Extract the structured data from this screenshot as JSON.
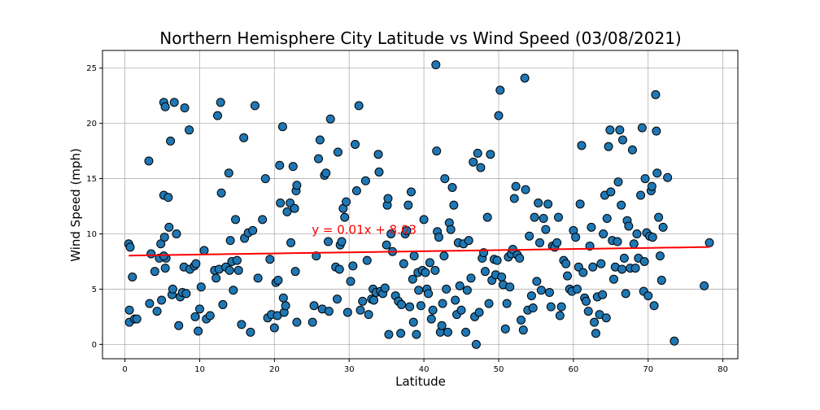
{
  "chart_data": {
    "type": "scatter",
    "title": "Northern Hemisphere City Latitude vs Wind Speed (03/08/2021)",
    "xlabel": "Latitude",
    "ylabel": "Wind Speed (mph)",
    "xlim": [
      -3,
      82
    ],
    "ylim": [
      -1.3,
      26.6
    ],
    "xticks": [
      0,
      10,
      20,
      30,
      40,
      50,
      60,
      70,
      80
    ],
    "yticks": [
      0,
      5,
      10,
      15,
      20,
      25
    ],
    "grid": true,
    "marker_color": "#1f77b4",
    "marker_edge": "#000000",
    "regression": {
      "slope": 0.01,
      "intercept": 8.03,
      "x_range": [
        0.5,
        78.2
      ],
      "color": "#ff0000",
      "equation": "y = 0.01x + 8.03",
      "label_x": 25,
      "label_y": 10
    },
    "points": [
      [
        0.5,
        9.1
      ],
      [
        0.7,
        8.8
      ],
      [
        0.6,
        3.1
      ],
      [
        0.6,
        2.0
      ],
      [
        1.0,
        6.1
      ],
      [
        1.3,
        2.3
      ],
      [
        1.6,
        2.3
      ],
      [
        3.2,
        16.6
      ],
      [
        3.3,
        3.7
      ],
      [
        3.5,
        8.2
      ],
      [
        4.0,
        6.6
      ],
      [
        4.3,
        3.0
      ],
      [
        4.6,
        7.8
      ],
      [
        4.8,
        9.1
      ],
      [
        4.9,
        4.0
      ],
      [
        5.2,
        21.9
      ],
      [
        5.4,
        21.5
      ],
      [
        5.2,
        13.5
      ],
      [
        5.3,
        9.7
      ],
      [
        5.4,
        6.9
      ],
      [
        5.5,
        7.8
      ],
      [
        5.2,
        8.0
      ],
      [
        5.8,
        13.3
      ],
      [
        5.9,
        10.6
      ],
      [
        6.1,
        18.4
      ],
      [
        6.3,
        4.5
      ],
      [
        6.6,
        21.9
      ],
      [
        6.4,
        5.0
      ],
      [
        6.9,
        10.0
      ],
      [
        7.2,
        1.7
      ],
      [
        7.4,
        4.3
      ],
      [
        7.7,
        4.7
      ],
      [
        7.9,
        7.0
      ],
      [
        8.0,
        21.4
      ],
      [
        8.2,
        4.6
      ],
      [
        8.6,
        19.4
      ],
      [
        8.7,
        6.8
      ],
      [
        9.3,
        7.1
      ],
      [
        9.5,
        7.3
      ],
      [
        9.4,
        2.5
      ],
      [
        9.8,
        1.2
      ],
      [
        10.0,
        3.2
      ],
      [
        10.2,
        5.2
      ],
      [
        10.6,
        8.5
      ],
      [
        10.9,
        2.3
      ],
      [
        11.4,
        2.6
      ],
      [
        12.0,
        6.7
      ],
      [
        12.2,
        6.0
      ],
      [
        12.4,
        20.7
      ],
      [
        12.6,
        6.8
      ],
      [
        12.8,
        21.9
      ],
      [
        12.9,
        13.7
      ],
      [
        13.1,
        3.6
      ],
      [
        13.5,
        7.0
      ],
      [
        13.9,
        15.5
      ],
      [
        14.0,
        6.7
      ],
      [
        14.1,
        9.4
      ],
      [
        14.3,
        7.5
      ],
      [
        14.5,
        4.9
      ],
      [
        14.8,
        11.3
      ],
      [
        15.0,
        7.6
      ],
      [
        15.2,
        6.7
      ],
      [
        15.6,
        1.8
      ],
      [
        15.9,
        18.7
      ],
      [
        16.0,
        9.6
      ],
      [
        16.5,
        10.1
      ],
      [
        16.8,
        1.1
      ],
      [
        17.1,
        10.3
      ],
      [
        17.4,
        21.6
      ],
      [
        17.8,
        6.0
      ],
      [
        18.4,
        11.3
      ],
      [
        18.8,
        15.0
      ],
      [
        19.1,
        2.4
      ],
      [
        19.4,
        7.7
      ],
      [
        19.6,
        2.7
      ],
      [
        20.0,
        1.5
      ],
      [
        20.2,
        5.6
      ],
      [
        20.4,
        2.6
      ],
      [
        20.5,
        5.8
      ],
      [
        20.7,
        16.2
      ],
      [
        20.8,
        12.8
      ],
      [
        21.1,
        19.7
      ],
      [
        21.2,
        4.2
      ],
      [
        21.3,
        2.9
      ],
      [
        21.5,
        3.5
      ],
      [
        21.7,
        12.0
      ],
      [
        22.1,
        12.8
      ],
      [
        22.2,
        9.2
      ],
      [
        22.5,
        16.1
      ],
      [
        22.7,
        12.3
      ],
      [
        22.9,
        13.9
      ],
      [
        23.0,
        14.4
      ],
      [
        22.8,
        6.6
      ],
      [
        23.0,
        2.0
      ],
      [
        25.1,
        2.0
      ],
      [
        25.3,
        3.5
      ],
      [
        25.6,
        8.0
      ],
      [
        25.9,
        16.8
      ],
      [
        26.1,
        18.5
      ],
      [
        26.4,
        3.2
      ],
      [
        26.7,
        15.3
      ],
      [
        26.9,
        15.5
      ],
      [
        27.2,
        9.3
      ],
      [
        27.3,
        3.0
      ],
      [
        27.5,
        20.4
      ],
      [
        28.2,
        7.0
      ],
      [
        28.4,
        4.1
      ],
      [
        28.5,
        17.4
      ],
      [
        28.7,
        6.8
      ],
      [
        28.8,
        9.0
      ],
      [
        29.0,
        9.3
      ],
      [
        29.2,
        12.3
      ],
      [
        29.4,
        11.5
      ],
      [
        29.6,
        12.9
      ],
      [
        29.8,
        2.9
      ],
      [
        30.2,
        5.7
      ],
      [
        30.5,
        7.1
      ],
      [
        30.8,
        18.1
      ],
      [
        31.0,
        13.9
      ],
      [
        31.3,
        21.6
      ],
      [
        31.5,
        3.1
      ],
      [
        31.8,
        3.9
      ],
      [
        32.2,
        14.8
      ],
      [
        32.4,
        7.6
      ],
      [
        32.6,
        2.7
      ],
      [
        33.0,
        4.1
      ],
      [
        33.2,
        5.0
      ],
      [
        33.3,
        4.0
      ],
      [
        33.6,
        4.7
      ],
      [
        33.9,
        17.2
      ],
      [
        34.0,
        15.6
      ],
      [
        34.2,
        4.8
      ],
      [
        34.5,
        4.6
      ],
      [
        34.8,
        5.1
      ],
      [
        35.0,
        9.0
      ],
      [
        35.1,
        12.6
      ],
      [
        35.2,
        13.2
      ],
      [
        35.3,
        0.9
      ],
      [
        35.6,
        10.0
      ],
      [
        35.8,
        8.4
      ],
      [
        36.2,
        4.4
      ],
      [
        36.6,
        3.9
      ],
      [
        36.9,
        1.0
      ],
      [
        37.0,
        3.6
      ],
      [
        37.3,
        7.3
      ],
      [
        37.5,
        10.0
      ],
      [
        37.7,
        10.3
      ],
      [
        37.9,
        12.6
      ],
      [
        38.1,
        3.4
      ],
      [
        38.3,
        13.8
      ],
      [
        38.5,
        5.9
      ],
      [
        38.6,
        2.0
      ],
      [
        38.7,
        8.0
      ],
      [
        39.0,
        0.9
      ],
      [
        39.2,
        6.5
      ],
      [
        39.3,
        4.9
      ],
      [
        39.6,
        3.5
      ],
      [
        39.8,
        6.7
      ],
      [
        40.0,
        11.3
      ],
      [
        40.2,
        6.5
      ],
      [
        40.4,
        5.0
      ],
      [
        40.6,
        4.6
      ],
      [
        40.8,
        7.4
      ],
      [
        41.0,
        2.3
      ],
      [
        41.2,
        3.1
      ],
      [
        41.5,
        6.7
      ],
      [
        41.6,
        25.3
      ],
      [
        41.7,
        17.5
      ],
      [
        41.8,
        10.2
      ],
      [
        42.0,
        9.7
      ],
      [
        42.2,
        1.1
      ],
      [
        42.4,
        1.7
      ],
      [
        42.5,
        3.7
      ],
      [
        42.7,
        8.0
      ],
      [
        42.8,
        15.0
      ],
      [
        43.0,
        5.0
      ],
      [
        43.2,
        1.1
      ],
      [
        43.4,
        11.0
      ],
      [
        43.6,
        10.4
      ],
      [
        43.8,
        14.2
      ],
      [
        44.0,
        12.6
      ],
      [
        44.2,
        4.0
      ],
      [
        44.4,
        2.7
      ],
      [
        44.6,
        9.2
      ],
      [
        44.8,
        5.3
      ],
      [
        45.0,
        3.1
      ],
      [
        45.3,
        9.1
      ],
      [
        45.6,
        1.1
      ],
      [
        45.8,
        4.9
      ],
      [
        46.0,
        9.4
      ],
      [
        46.3,
        6.0
      ],
      [
        46.6,
        16.5
      ],
      [
        46.8,
        2.5
      ],
      [
        47.0,
        0.0
      ],
      [
        47.2,
        17.3
      ],
      [
        47.4,
        2.9
      ],
      [
        47.6,
        16.0
      ],
      [
        47.8,
        7.8
      ],
      [
        48.0,
        8.3
      ],
      [
        48.2,
        6.6
      ],
      [
        48.5,
        11.5
      ],
      [
        48.7,
        3.7
      ],
      [
        48.9,
        17.2
      ],
      [
        49.1,
        5.8
      ],
      [
        49.4,
        7.7
      ],
      [
        49.6,
        6.3
      ],
      [
        49.8,
        7.6
      ],
      [
        50.0,
        20.7
      ],
      [
        50.2,
        23.0
      ],
      [
        50.4,
        6.1
      ],
      [
        50.6,
        5.4
      ],
      [
        50.9,
        1.4
      ],
      [
        51.1,
        3.7
      ],
      [
        51.3,
        7.9
      ],
      [
        51.5,
        5.2
      ],
      [
        51.7,
        8.2
      ],
      [
        51.9,
        8.6
      ],
      [
        52.1,
        13.2
      ],
      [
        52.3,
        14.3
      ],
      [
        52.5,
        8.1
      ],
      [
        52.8,
        7.8
      ],
      [
        53.0,
        2.2
      ],
      [
        53.3,
        1.3
      ],
      [
        53.5,
        24.1
      ],
      [
        53.6,
        14.0
      ],
      [
        53.9,
        3.1
      ],
      [
        54.1,
        9.8
      ],
      [
        54.4,
        4.4
      ],
      [
        54.6,
        3.3
      ],
      [
        54.8,
        11.5
      ],
      [
        55.1,
        5.7
      ],
      [
        55.3,
        12.8
      ],
      [
        55.5,
        9.2
      ],
      [
        55.7,
        4.9
      ],
      [
        56.0,
        11.4
      ],
      [
        56.3,
        10.4
      ],
      [
        56.6,
        12.7
      ],
      [
        56.8,
        4.7
      ],
      [
        57.0,
        3.4
      ],
      [
        57.2,
        8.9
      ],
      [
        57.5,
        8.8
      ],
      [
        57.8,
        9.2
      ],
      [
        58.0,
        11.5
      ],
      [
        58.2,
        2.6
      ],
      [
        58.4,
        3.4
      ],
      [
        58.7,
        7.6
      ],
      [
        59.0,
        7.3
      ],
      [
        59.2,
        6.2
      ],
      [
        59.5,
        5.0
      ],
      [
        59.8,
        4.8
      ],
      [
        60.0,
        10.3
      ],
      [
        60.3,
        9.7
      ],
      [
        60.5,
        5.0
      ],
      [
        60.7,
        7.0
      ],
      [
        60.9,
        12.7
      ],
      [
        61.1,
        18.0
      ],
      [
        61.3,
        6.5
      ],
      [
        61.5,
        4.2
      ],
      [
        61.7,
        3.9
      ],
      [
        62.0,
        3.0
      ],
      [
        62.2,
        8.9
      ],
      [
        62.4,
        10.6
      ],
      [
        62.6,
        7.0
      ],
      [
        62.8,
        2.0
      ],
      [
        63.0,
        1.0
      ],
      [
        63.2,
        4.3
      ],
      [
        63.5,
        2.7
      ],
      [
        63.7,
        7.3
      ],
      [
        63.9,
        4.5
      ],
      [
        64.0,
        10.0
      ],
      [
        64.2,
        13.5
      ],
      [
        64.4,
        2.4
      ],
      [
        64.5,
        11.4
      ],
      [
        64.7,
        17.9
      ],
      [
        64.9,
        19.4
      ],
      [
        65.0,
        13.8
      ],
      [
        65.2,
        9.4
      ],
      [
        65.4,
        5.9
      ],
      [
        65.6,
        7.0
      ],
      [
        65.9,
        9.3
      ],
      [
        66.0,
        14.7
      ],
      [
        66.2,
        19.4
      ],
      [
        66.4,
        12.6
      ],
      [
        66.6,
        18.5
      ],
      [
        66.8,
        7.8
      ],
      [
        67.0,
        4.6
      ],
      [
        67.2,
        11.2
      ],
      [
        67.4,
        10.7
      ],
      [
        67.6,
        6.9
      ],
      [
        67.9,
        17.6
      ],
      [
        68.1,
        9.1
      ],
      [
        68.3,
        6.9
      ],
      [
        68.5,
        10.0
      ],
      [
        68.7,
        7.8
      ],
      [
        69.0,
        13.5
      ],
      [
        69.2,
        19.6
      ],
      [
        69.4,
        4.8
      ],
      [
        69.6,
        15.0
      ],
      [
        69.8,
        10.1
      ],
      [
        70.0,
        4.4
      ],
      [
        70.2,
        9.8
      ],
      [
        70.4,
        13.9
      ],
      [
        70.6,
        9.7
      ],
      [
        70.8,
        3.5
      ],
      [
        71.0,
        22.6
      ],
      [
        71.1,
        19.3
      ],
      [
        71.2,
        15.5
      ],
      [
        71.4,
        11.5
      ],
      [
        71.6,
        8.0
      ],
      [
        71.8,
        5.8
      ],
      [
        72.0,
        10.6
      ],
      [
        72.6,
        15.1
      ],
      [
        73.5,
        0.3
      ],
      [
        77.5,
        5.3
      ],
      [
        78.2,
        9.2
      ],
      [
        70.5,
        14.3
      ],
      [
        69.5,
        7.5
      ],
      [
        66.5,
        6.8
      ]
    ]
  }
}
